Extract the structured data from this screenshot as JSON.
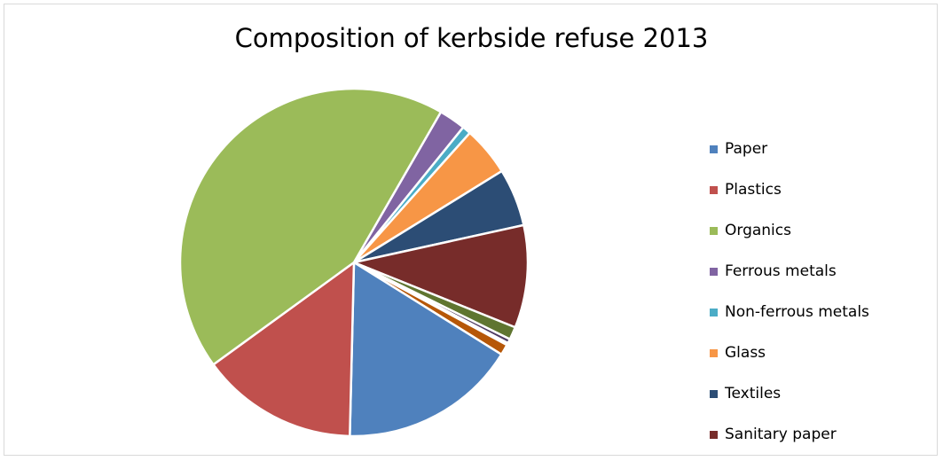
{
  "chart_data": {
    "type": "pie",
    "title": "Composition of kerbside refuse 2013",
    "legend_position": "right",
    "slices": [
      {
        "label": "Paper",
        "value": 16.6,
        "color": "#4f81bd",
        "in_legend": true
      },
      {
        "label": "Plastics",
        "value": 14.7,
        "color": "#c0504d",
        "in_legend": true
      },
      {
        "label": "Organics",
        "value": 43.6,
        "color": "#9bbb59",
        "in_legend": true
      },
      {
        "label": "Ferrous metals",
        "value": 2.5,
        "color": "#8064a2",
        "in_legend": true
      },
      {
        "label": "Non-ferrous metals",
        "value": 0.8,
        "color": "#4bacc6",
        "in_legend": true
      },
      {
        "label": "Glass",
        "value": 4.6,
        "color": "#f79646",
        "in_legend": true
      },
      {
        "label": "Textiles",
        "value": 5.4,
        "color": "#2c4d75",
        "in_legend": true
      },
      {
        "label": "Sanitary paper",
        "value": 9.6,
        "color": "#772c2a",
        "in_legend": true
      },
      {
        "label": "",
        "value": 1.2,
        "color": "#5f7530",
        "in_legend": false
      },
      {
        "label": "",
        "value": 0.4,
        "color": "#4d3b62",
        "in_legend": false
      },
      {
        "label": "",
        "value": 0.2,
        "color": "#276a7c",
        "in_legend": false
      },
      {
        "label": "",
        "value": 1.0,
        "color": "#b65708",
        "in_legend": false
      }
    ]
  }
}
